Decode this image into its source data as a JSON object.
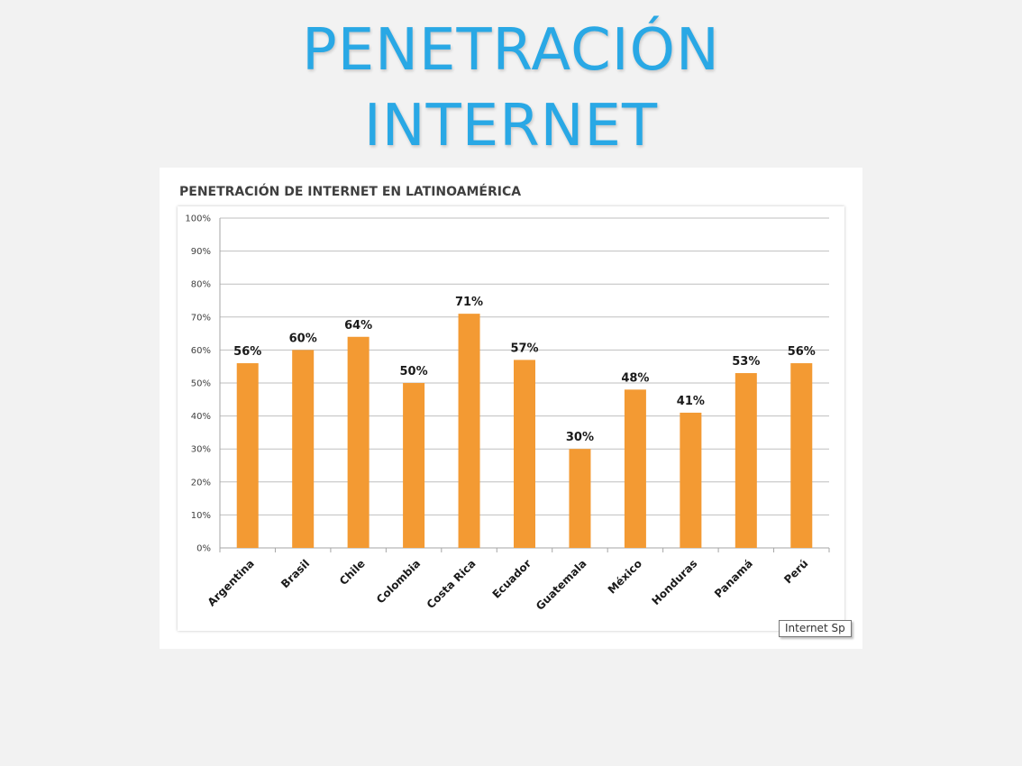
{
  "slide": {
    "title_line1": "PENETRACIÓN",
    "title_line2": "INTERNET"
  },
  "tooltip": "Internet Sp",
  "colors": {
    "title": "#29a8e5",
    "bar": "#f39a33",
    "grid": "#bfbfbf",
    "background": "#f2f2f2"
  },
  "chart_data": {
    "type": "bar",
    "title": "PENETRACIÓN DE INTERNET EN LATINOAMÉRICA",
    "xlabel": "",
    "ylabel": "",
    "categories": [
      "Argentina",
      "Brasil",
      "Chile",
      "Colombia",
      "Costa Rica",
      "Ecuador",
      "Guatemala",
      "México",
      "Honduras",
      "Panamá",
      "Perú"
    ],
    "values": [
      56,
      60,
      64,
      50,
      71,
      57,
      30,
      48,
      41,
      53,
      56
    ],
    "data_labels": [
      "56%",
      "60%",
      "64%",
      "50%",
      "71%",
      "57%",
      "30%",
      "48%",
      "41%",
      "53%",
      "56%"
    ],
    "y_ticks": [
      0,
      10,
      20,
      30,
      40,
      50,
      60,
      70,
      80,
      90,
      100
    ],
    "y_tick_labels": [
      "0%",
      "10%",
      "20%",
      "30%",
      "40%",
      "50%",
      "60%",
      "70%",
      "80%",
      "90%",
      "100%"
    ],
    "ylim": [
      0,
      100
    ],
    "grid": true,
    "legend": "none"
  }
}
